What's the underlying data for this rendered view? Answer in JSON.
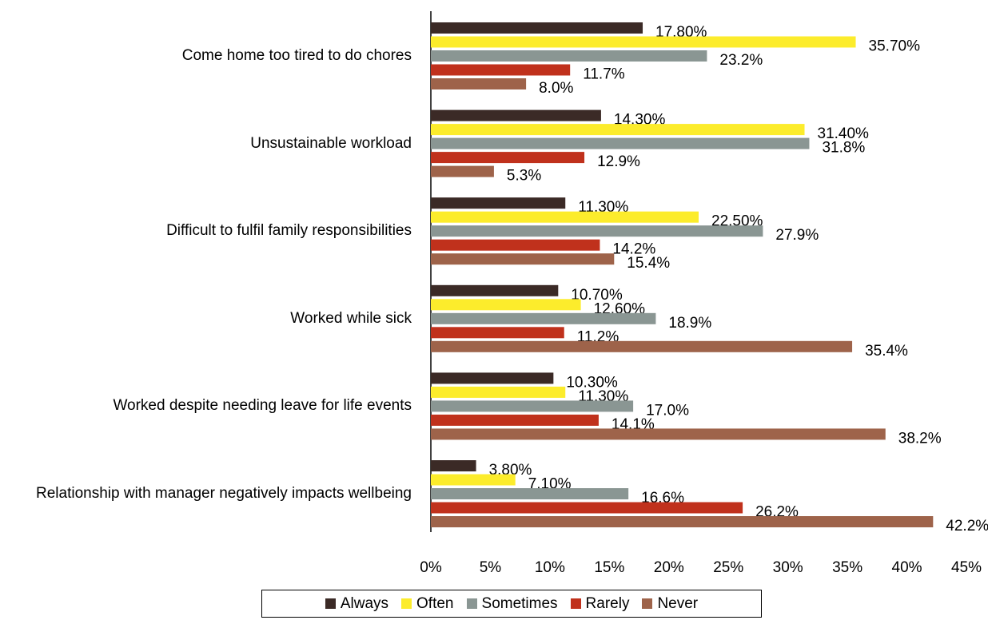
{
  "chart_data": {
    "type": "hbar",
    "categories": [
      "Come home too tired to do chores",
      "Unsustainable workload",
      "Difficult to fulfil family responsibilities",
      "Worked while sick",
      "Worked despite needing leave for life events",
      "Relationship with manager negatively impacts wellbeing"
    ],
    "series": [
      {
        "name": "Always",
        "color": "#3b2a26",
        "values": [
          17.8,
          14.3,
          11.3,
          10.7,
          10.3,
          3.8
        ],
        "value_labels": [
          "17.80%",
          "14.30%",
          "11.30%",
          "10.70%",
          "10.30%",
          "3.80%"
        ]
      },
      {
        "name": "Often",
        "color": "#fcec2c",
        "values": [
          35.7,
          31.4,
          22.5,
          12.6,
          11.3,
          7.1
        ],
        "value_labels": [
          "35.70%",
          "31.40%",
          "22.50%",
          "12.60%",
          "11.30%",
          "7.10%"
        ]
      },
      {
        "name": "Sometimes",
        "color": "#8a9693",
        "values": [
          23.2,
          31.8,
          27.9,
          18.9,
          17.0,
          16.6
        ],
        "value_labels": [
          "23.2%",
          "31.8%",
          "27.9%",
          "18.9%",
          "17.0%",
          "16.6%"
        ]
      },
      {
        "name": "Rarely",
        "color": "#c0311c",
        "values": [
          11.7,
          12.9,
          14.2,
          11.2,
          14.1,
          26.2
        ],
        "value_labels": [
          "11.7%",
          "12.9%",
          "14.2%",
          "11.2%",
          "14.1%",
          "26.2%"
        ]
      },
      {
        "name": "Never",
        "color": "#9e634a",
        "values": [
          8.0,
          5.3,
          15.4,
          35.4,
          38.2,
          42.2
        ],
        "value_labels": [
          "8.0%",
          "5.3%",
          "15.4%",
          "35.4%",
          "38.2%",
          "42.2%"
        ]
      }
    ],
    "xlim": [
      0,
      45
    ],
    "xticks": [
      {
        "value": 0,
        "label": "0%"
      },
      {
        "value": 5,
        "label": "5%"
      },
      {
        "value": 10,
        "label": "10%"
      },
      {
        "value": 15,
        "label": "15%"
      },
      {
        "value": 20,
        "label": "20%"
      },
      {
        "value": 25,
        "label": "25%"
      },
      {
        "value": 30,
        "label": "30%"
      },
      {
        "value": 35,
        "label": "35%"
      },
      {
        "value": 40,
        "label": "40%"
      },
      {
        "value": 45,
        "label": "45%"
      }
    ],
    "legend": "bottom"
  }
}
